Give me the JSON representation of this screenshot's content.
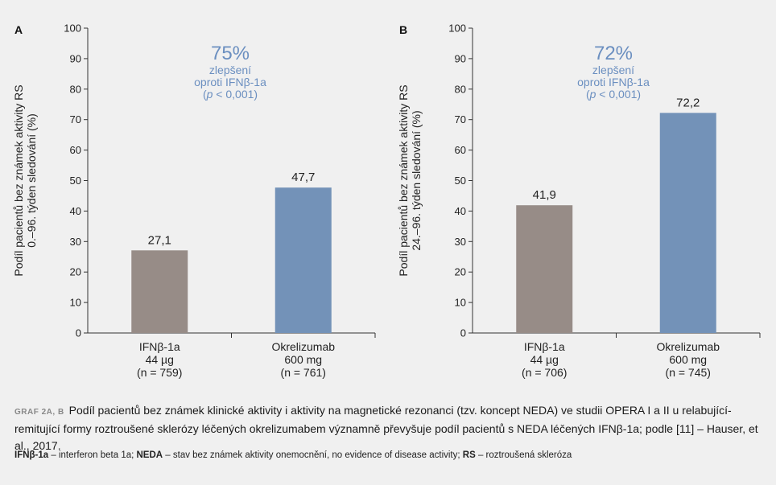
{
  "chart_data": [
    {
      "type": "bar",
      "panel": "A",
      "ylabel_line1": "Podíl pacientů bez známek aktivity RS",
      "ylabel_line2": "0.–96. týden sledování (%)",
      "ylim": [
        0,
        100
      ],
      "yticks": [
        0,
        10,
        20,
        30,
        40,
        50,
        60,
        70,
        80,
        90,
        100
      ],
      "categories": [
        [
          "IFNβ-1a",
          "44 µg",
          "(n = 759)"
        ],
        [
          "Okrelizumab",
          "600 mg",
          "(n = 761)"
        ]
      ],
      "values": [
        27.1,
        47.7
      ],
      "value_labels": [
        "27,1",
        "47,7"
      ],
      "colors": [
        "#978c87",
        "#7392b8"
      ],
      "annotation": {
        "big": "75%",
        "line1": "zlepšení",
        "line2": "oproti IFNβ-1a",
        "p_italic": "p",
        "p_rest": " < 0,001)"
      }
    },
    {
      "type": "bar",
      "panel": "B",
      "ylabel_line1": "Podíl pacientů bez známek aktivity RS",
      "ylabel_line2": "24.–96. týden sledování (%)",
      "ylim": [
        0,
        100
      ],
      "yticks": [
        0,
        10,
        20,
        30,
        40,
        50,
        60,
        70,
        80,
        90,
        100
      ],
      "categories": [
        [
          "IFNβ-1a",
          "44 µg",
          "(n = 706)"
        ],
        [
          "Okrelizumab",
          "600 mg",
          "(n = 745)"
        ]
      ],
      "values": [
        41.9,
        72.2
      ],
      "value_labels": [
        "41,9",
        "72,2"
      ],
      "colors": [
        "#978c87",
        "#7392b8"
      ],
      "annotation": {
        "big": "72%",
        "line1": "zlepšení",
        "line2": "oproti IFNβ-1a",
        "p_italic": "p",
        "p_rest": " < 0,001)"
      }
    }
  ],
  "caption": {
    "label": "GRAF 2A, B",
    "text": "Podíl pacientů bez známek klinické aktivity i aktivity na magnetické rezonanci (tzv. koncept NEDA) ve studii OPERA I a II u relabující-remitující formy roztroušené sklerózy léčených okrelizumabem významně převyšuje podíl pacientů s NEDA léčených IFNβ-1a; podle [11] – Hauser, et al., 2017."
  },
  "abbreviations": [
    {
      "term": "IFNβ-1a",
      "def": " – interferon beta 1a; "
    },
    {
      "term": "NEDA",
      "def": " – stav bez známek aktivity onemocnění, no evidence of disease activity; "
    },
    {
      "term": "RS",
      "def": " – roztroušená skleróza"
    }
  ]
}
